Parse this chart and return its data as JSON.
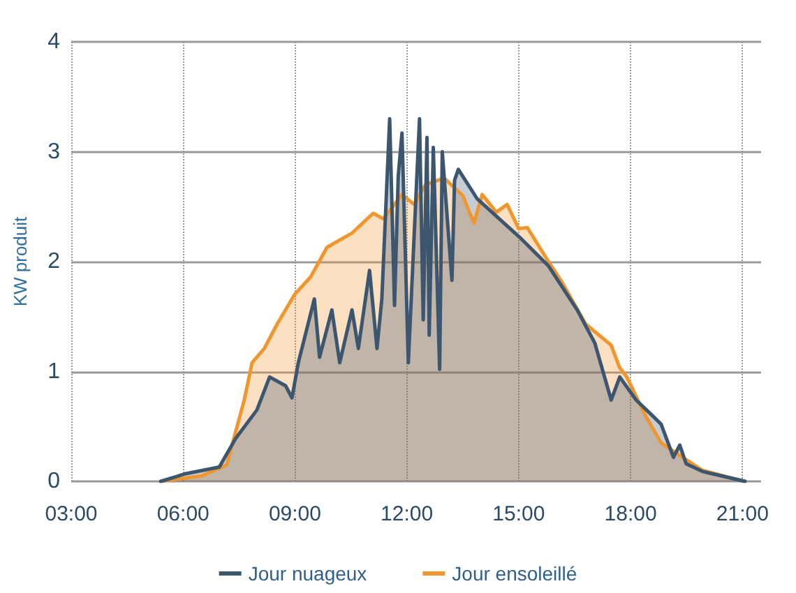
{
  "chart_data": {
    "type": "area",
    "ylabel": "KW produit",
    "xlim": [
      3,
      21.5
    ],
    "ylim": [
      0,
      4
    ],
    "yticks": [
      0,
      1,
      2,
      3,
      4
    ],
    "xticks": [
      {
        "value": 3,
        "label": "03:00"
      },
      {
        "value": 6,
        "label": "06:00"
      },
      {
        "value": 9,
        "label": "09:00"
      },
      {
        "value": 12,
        "label": "12:00"
      },
      {
        "value": 15,
        "label": "15:00"
      },
      {
        "value": 18,
        "label": "18:00"
      },
      {
        "value": 21,
        "label": "21:00"
      }
    ],
    "grid": true,
    "legend": "bottom",
    "marker": "none",
    "line_style": "solid",
    "series": [
      {
        "name": "Jour ensoleillé",
        "color": "#f0962e",
        "x": [
          5.4,
          6.5,
          7.17,
          7.64,
          7.85,
          8.18,
          8.52,
          8.99,
          9.42,
          9.86,
          10.53,
          11.1,
          11.37,
          11.87,
          12.2,
          12.5,
          13.0,
          13.5,
          13.8,
          14.02,
          14.4,
          14.69,
          15.0,
          15.23,
          15.8,
          16.13,
          16.8,
          17.48,
          17.7,
          17.9,
          18.38,
          18.82,
          19.39,
          19.93,
          20.6,
          21.07
        ],
        "values": [
          0,
          0.05,
          0.15,
          0.74,
          1.08,
          1.21,
          1.43,
          1.7,
          1.86,
          2.13,
          2.26,
          2.44,
          2.39,
          2.61,
          2.52,
          2.7,
          2.76,
          2.6,
          2.35,
          2.61,
          2.45,
          2.52,
          2.3,
          2.31,
          2.0,
          1.83,
          1.43,
          1.24,
          1.04,
          0.95,
          0.61,
          0.35,
          0.22,
          0.1,
          0.04,
          0
        ]
      },
      {
        "name": "Jour nuageux",
        "color": "#3d5670",
        "x": [
          5.4,
          6.07,
          6.97,
          7.41,
          7.98,
          8.32,
          8.75,
          8.92,
          9.09,
          9.52,
          9.66,
          9.99,
          10.2,
          10.53,
          10.7,
          11.0,
          11.2,
          11.33,
          11.54,
          11.67,
          11.77,
          11.87,
          12.04,
          12.34,
          12.44,
          12.54,
          12.6,
          12.71,
          12.88,
          12.95,
          13.21,
          13.28,
          13.38,
          13.89,
          15.03,
          15.8,
          16.57,
          17.04,
          17.48,
          17.71,
          18.15,
          18.55,
          18.82,
          19.15,
          19.32,
          19.49,
          19.93,
          21.07
        ],
        "values": [
          0,
          0.07,
          0.13,
          0.39,
          0.65,
          0.95,
          0.87,
          0.76,
          1.08,
          1.66,
          1.13,
          1.56,
          1.08,
          1.56,
          1.21,
          1.92,
          1.21,
          1.66,
          3.3,
          1.6,
          2.78,
          3.17,
          1.08,
          3.3,
          1.47,
          3.13,
          1.33,
          3.04,
          1.02,
          3.0,
          1.83,
          2.74,
          2.84,
          2.57,
          2.22,
          1.96,
          1.56,
          1.26,
          0.74,
          0.95,
          0.74,
          0.61,
          0.52,
          0.22,
          0.33,
          0.16,
          0.09,
          0
        ]
      }
    ]
  }
}
